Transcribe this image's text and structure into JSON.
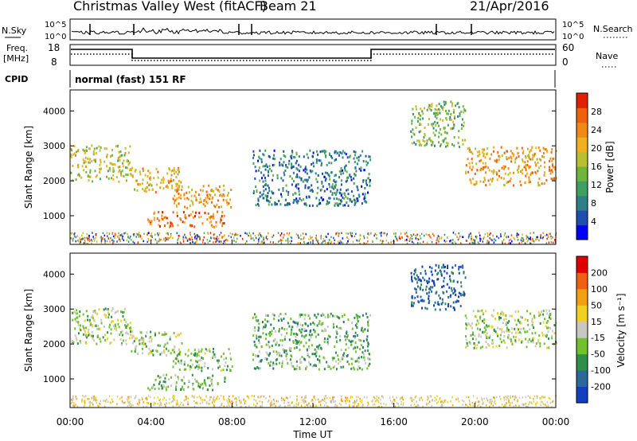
{
  "header": {
    "title": "Christmas Valley West (fitACF)",
    "beam": "Beam 21",
    "date": "21/Apr/2016"
  },
  "status_panels": {
    "nsky_label": "N.Sky",
    "nsky_ticks": [
      "10^5",
      "10^0"
    ],
    "nsearch_label": "N.Search",
    "nsearch_ticks": [
      "10^5",
      "10^0"
    ],
    "freq_label": "Freq.",
    "freq_unit": "[MHz]",
    "freq_ticks": [
      "18",
      "8"
    ],
    "nave_label": "Nave",
    "nave_ticks": [
      "60",
      "0"
    ],
    "cpid_label": "CPID",
    "cpid_text": "normal (fast) 151 RF"
  },
  "chart_data": [
    {
      "type": "heatmap",
      "panel": "power",
      "ylabel": "Slant Range [km]",
      "xlim": [
        0,
        24
      ],
      "ylim": [
        180,
        4600
      ],
      "yticks": [
        "1000",
        "2000",
        "3000",
        "4000"
      ],
      "colorbar_label": "Power [dB]",
      "colorbar_ticks": [
        "28",
        "24",
        "20",
        "16",
        "12",
        "8",
        "4"
      ],
      "colors": [
        "#0000ff",
        "#1c4fb0",
        "#2e7f87",
        "#3f9f60",
        "#6fb53c",
        "#b8c030",
        "#f0b020",
        "#f08a15",
        "#f0600d",
        "#e02000"
      ],
      "echo_regions": [
        {
          "t0": 0,
          "t1": 3.0,
          "r0": 2000,
          "r1": 3050,
          "level": 0.55
        },
        {
          "t0": 3.0,
          "t1": 5.5,
          "r0": 1700,
          "r1": 2400,
          "level": 0.65
        },
        {
          "t0": 5.0,
          "t1": 8.0,
          "r0": 1250,
          "r1": 1900,
          "level": 0.7
        },
        {
          "t0": 3.8,
          "t1": 7.7,
          "r0": 700,
          "r1": 1150,
          "level": 0.8
        },
        {
          "t0": 9.0,
          "t1": 14.8,
          "r0": 1300,
          "r1": 2900,
          "level": 0.25
        },
        {
          "t0": 16.8,
          "t1": 19.5,
          "r0": 3000,
          "r1": 4300,
          "level": 0.45
        },
        {
          "t0": 19.5,
          "t1": 24.0,
          "r0": 1900,
          "r1": 3000,
          "level": 0.7
        }
      ]
    },
    {
      "type": "heatmap",
      "panel": "velocity",
      "ylabel": "Slant Range [km]",
      "xlim": [
        0,
        24
      ],
      "ylim": [
        180,
        4600
      ],
      "yticks": [
        "1000",
        "2000",
        "3000",
        "4000"
      ],
      "colorbar_label": "Velocity [m s⁻¹]",
      "colorbar_ticks": [
        "200",
        "100",
        "50",
        "15",
        "-15",
        "-50",
        "-100",
        "-200"
      ],
      "colors": [
        "#1040c0",
        "#2a6a9a",
        "#2f8f4a",
        "#70c030",
        "#c8c8c0",
        "#f0d020",
        "#f0a010",
        "#f06010",
        "#e00000"
      ],
      "echo_regions": [
        {
          "t0": 0,
          "t1": 3.0,
          "r0": 2000,
          "r1": 3050,
          "level": 0.45
        },
        {
          "t0": 3.0,
          "t1": 5.5,
          "r0": 1700,
          "r1": 2400,
          "level": 0.45
        },
        {
          "t0": 5.0,
          "t1": 8.0,
          "r0": 1250,
          "r1": 1900,
          "level": 0.4
        },
        {
          "t0": 3.8,
          "t1": 7.7,
          "r0": 700,
          "r1": 1150,
          "level": 0.38
        },
        {
          "t0": 9.0,
          "t1": 14.8,
          "r0": 1300,
          "r1": 2900,
          "level": 0.35
        },
        {
          "t0": 16.8,
          "t1": 19.5,
          "r0": 3000,
          "r1": 4300,
          "level": 0.1
        },
        {
          "t0": 19.5,
          "t1": 24.0,
          "r0": 1900,
          "r1": 3000,
          "level": 0.45
        }
      ]
    }
  ],
  "x_axis": {
    "label": "Time UT",
    "ticks": [
      "00:00",
      "04:00",
      "08:00",
      "12:00",
      "16:00",
      "20:00",
      "00:00"
    ]
  }
}
